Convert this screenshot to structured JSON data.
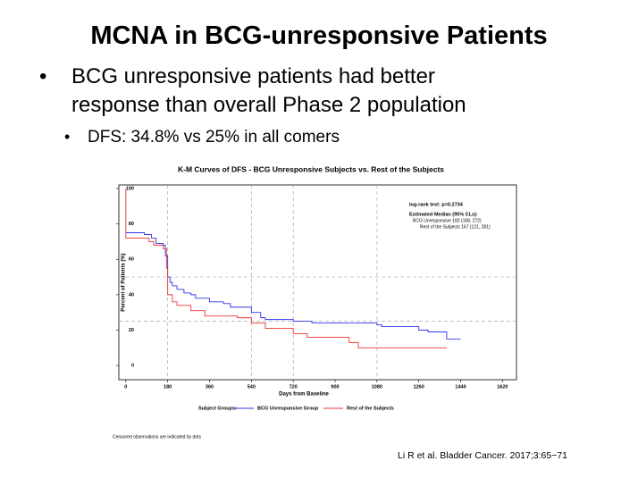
{
  "slide": {
    "title": "MCNA in BCG-unresponsive Patients",
    "bullet": "BCG unresponsive patients had better response than overall Phase 2 population",
    "sub_bullet": "DFS: 34.8% vs 25% in all comers",
    "citation": "Li R et al. Bladder Cancer. 2017;3:65−71"
  },
  "chart_data": {
    "type": "step",
    "title": "K-M Curves of DFS - BCG Unresponsive Subjects vs. Rest of the Subjects",
    "xlabel": "Days from Baseline",
    "ylabel": "Percent of Patients (%)",
    "xlim": [
      -30,
      1680
    ],
    "ylim": [
      -8,
      102
    ],
    "xticks": [
      0,
      180,
      360,
      540,
      720,
      900,
      1080,
      1260,
      1440,
      1620
    ],
    "yticks": [
      0,
      20,
      40,
      60,
      80,
      100
    ],
    "ref_x": [
      180,
      540,
      720,
      1080
    ],
    "ref_y": [
      25,
      50
    ],
    "annotations": [
      "log-rank test:  p=0.2734",
      "Estimated Median (95% CLs):",
      "BCG Unresponsive    182 (168, 272)",
      "Rest of the Subjects  167 (121, 281)"
    ],
    "legend_title": "Subject Groups:",
    "footnote": "Censored observations are indicated by dots",
    "series": [
      {
        "name": "BCG Unresponsive Group",
        "color": "#3333ee",
        "x": [
          0,
          80,
          110,
          130,
          160,
          170,
          180,
          190,
          200,
          220,
          250,
          280,
          300,
          360,
          420,
          450,
          540,
          580,
          600,
          720,
          800,
          1080,
          1100,
          1260,
          1300,
          1380,
          1440
        ],
        "values": [
          75,
          74,
          72,
          69,
          68,
          62,
          50,
          47,
          45,
          43,
          41,
          40,
          38,
          36,
          35,
          33,
          30,
          27,
          26,
          25,
          24,
          23,
          22,
          20,
          19,
          15,
          15
        ]
      },
      {
        "name": "Rest of the Subjects",
        "color": "#ee3333",
        "x": [
          0,
          0,
          100,
          120,
          160,
          175,
          180,
          200,
          220,
          280,
          340,
          480,
          540,
          600,
          720,
          780,
          960,
          1000,
          1380
        ],
        "values": [
          100,
          72,
          70,
          68,
          66,
          55,
          40,
          36,
          34,
          31,
          28,
          27,
          24,
          21,
          18,
          16,
          13,
          10,
          10
        ]
      }
    ]
  }
}
